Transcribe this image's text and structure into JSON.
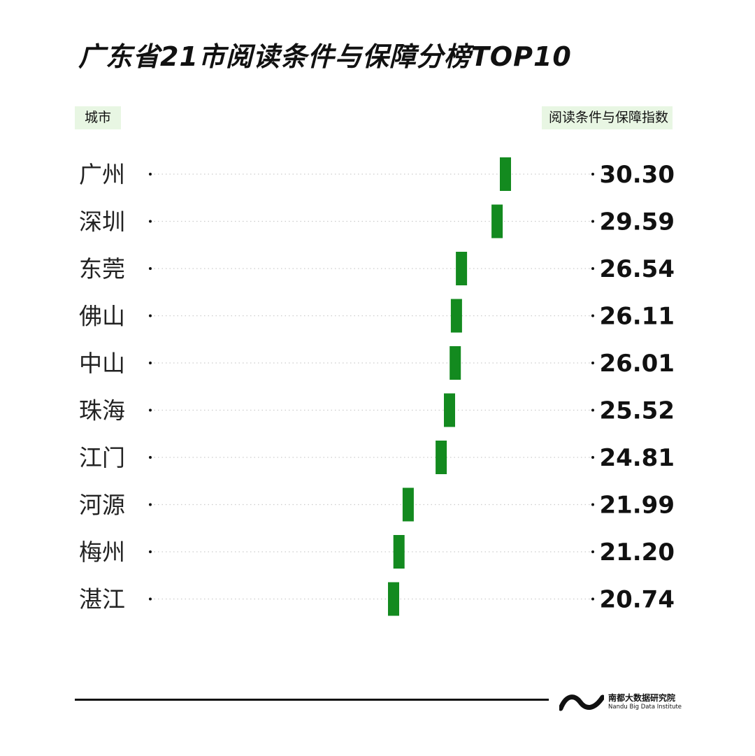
{
  "title": "广东省21市阅读条件与保障分榜TOP10",
  "headers": {
    "left": "城市",
    "right": "阅读条件与保障指数"
  },
  "colors": {
    "bar": "#138a1f",
    "header_bg": "#e8f6e3",
    "dotted_line": "#cccccc"
  },
  "chart_data": {
    "type": "bar",
    "categories": [
      "广州",
      "深圳",
      "东莞",
      "佛山",
      "中山",
      "珠海",
      "江门",
      "河源",
      "梅州",
      "湛江"
    ],
    "values": [
      30.3,
      29.59,
      26.54,
      26.11,
      26.01,
      25.52,
      24.81,
      21.99,
      21.2,
      20.74
    ],
    "value_labels": [
      "30.30",
      "29.59",
      "26.54",
      "26.11",
      "26.01",
      "25.52",
      "24.81",
      "21.99",
      "21.20",
      "20.74"
    ],
    "xlim": [
      0,
      32
    ],
    "grid": false,
    "legend": "none"
  },
  "footer": {
    "org_cn": "南都大数据研究院",
    "org_en": "Nandu Big Data Institute"
  }
}
